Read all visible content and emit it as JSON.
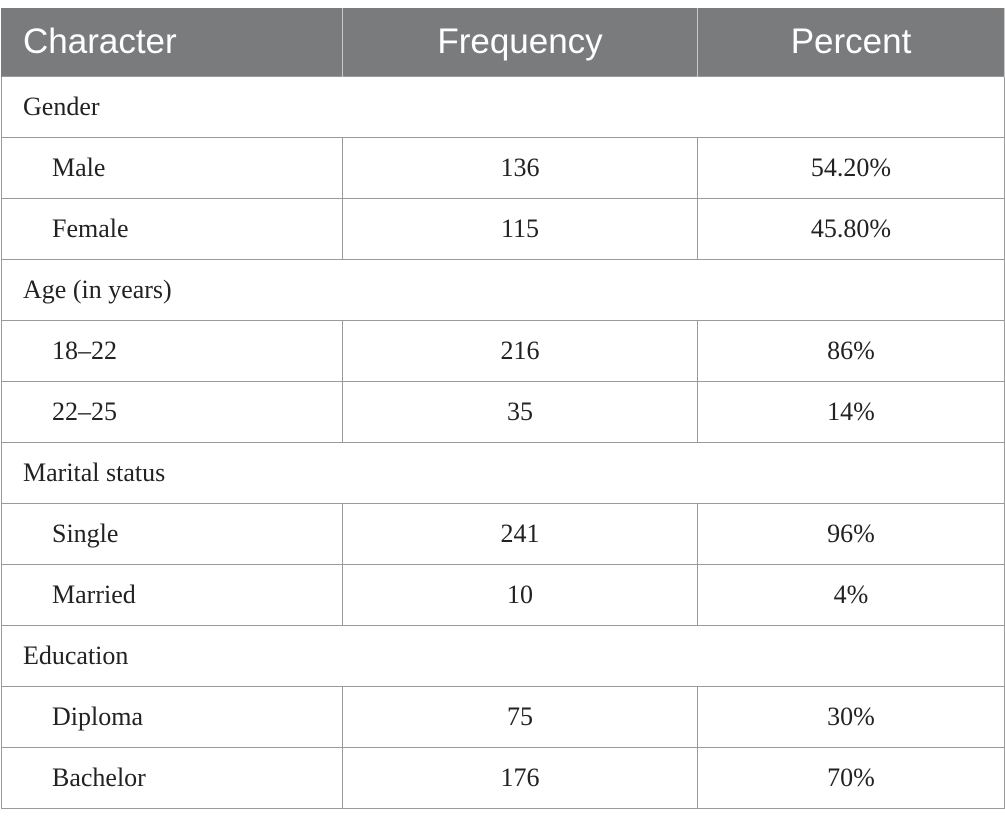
{
  "table": {
    "headers": [
      "Character",
      "Frequency",
      "Percent"
    ],
    "groups": [
      {
        "label": "Gender",
        "rows": [
          {
            "label": "Male",
            "frequency": "136",
            "percent": "54.20%"
          },
          {
            "label": "Female",
            "frequency": "115",
            "percent": "45.80%"
          }
        ]
      },
      {
        "label": "Age (in years)",
        "rows": [
          {
            "label": "18–22",
            "frequency": "216",
            "percent": "86%"
          },
          {
            "label": "22–25",
            "frequency": "35",
            "percent": "14%"
          }
        ]
      },
      {
        "label": "Marital status",
        "rows": [
          {
            "label": "Single",
            "frequency": "241",
            "percent": "96%"
          },
          {
            "label": "Married",
            "frequency": "10",
            "percent": "4%"
          }
        ]
      },
      {
        "label": "Education",
        "rows": [
          {
            "label": "Diploma",
            "frequency": "75",
            "percent": "30%"
          },
          {
            "label": "Bachelor",
            "frequency": "176",
            "percent": "70%"
          }
        ]
      }
    ]
  },
  "colors": {
    "header_background": "#7a7b7c",
    "header_text": "#ffffff",
    "border": "#9a9a9a",
    "body_text": "#222222"
  }
}
